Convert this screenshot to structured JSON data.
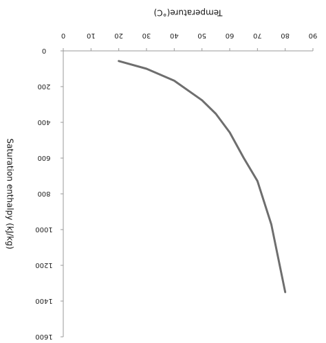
{
  "chart_data": {
    "type": "line",
    "title": "",
    "xlabel": "Temperature(°C)",
    "ylabel": "Saturation enthalpy (kJ/kg)",
    "x_axis_position": "top",
    "y_axis_inverted": true,
    "xlim": [
      0,
      90
    ],
    "ylim": [
      0,
      1600
    ],
    "x_ticks": [
      0,
      10,
      20,
      30,
      40,
      50,
      60,
      70,
      80,
      90
    ],
    "x_tick_labels": [
      "0",
      "10",
      "20",
      "30",
      "40",
      "50",
      "60",
      "70",
      "80",
      "90"
    ],
    "y_ticks": [
      0,
      200,
      400,
      600,
      800,
      1000,
      1200,
      1400,
      1600
    ],
    "y_tick_labels": [
      "0",
      "200",
      "400",
      "600",
      "800",
      "1000",
      "1200",
      "1400",
      "1600"
    ],
    "grid": false,
    "line_color": "#6e6e6e",
    "series": [
      {
        "x": [
          20,
          30,
          40,
          50,
          55,
          60,
          65,
          70,
          75,
          80
        ],
        "y": [
          57,
          100,
          167,
          276,
          352,
          456,
          598,
          728,
          971,
          1350
        ]
      }
    ]
  }
}
